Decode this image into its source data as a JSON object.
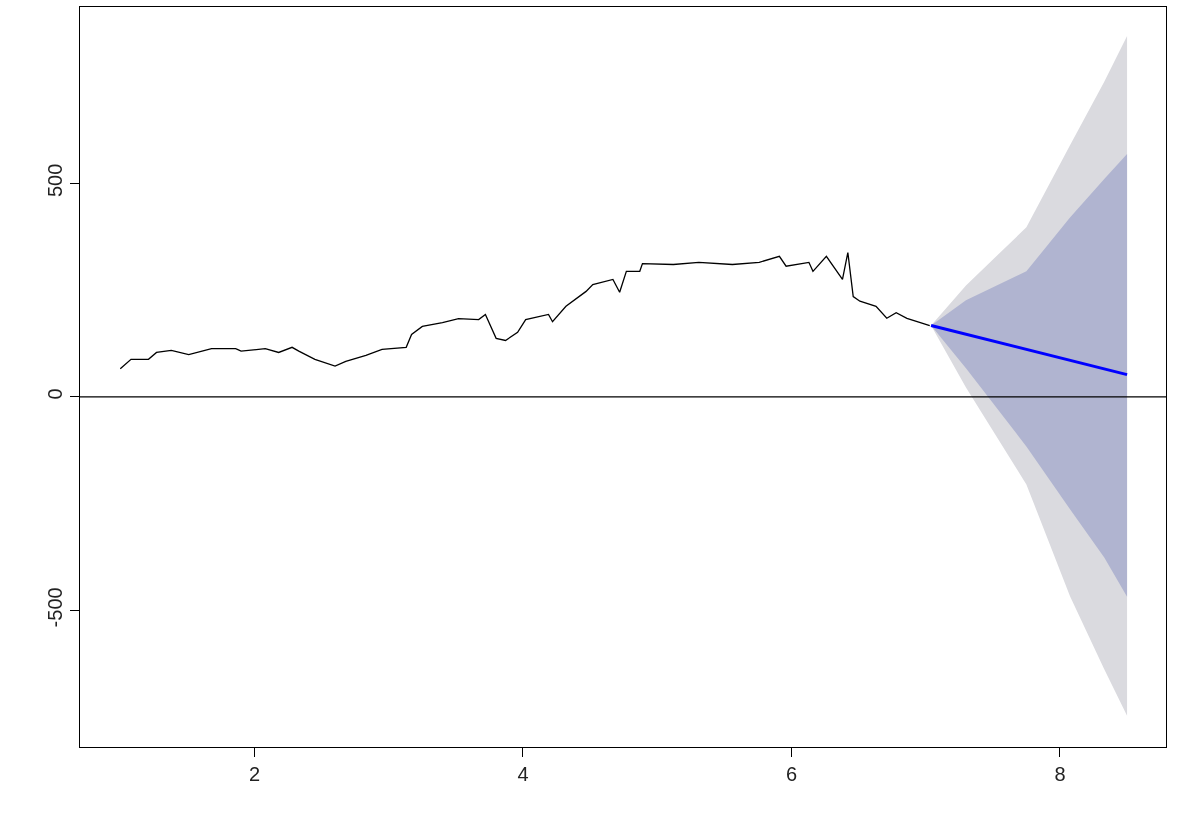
{
  "chart_data": {
    "type": "line",
    "xlim": [
      0.7,
      8.79
    ],
    "ylim": [
      -820,
      913
    ],
    "xticks": [
      2,
      4,
      6,
      8
    ],
    "yticks": [
      -500,
      0,
      500
    ],
    "ref_lines": [
      {
        "axis": "y",
        "value": 0,
        "color": "#000000"
      }
    ],
    "series": [
      {
        "color": "#dadadf",
        "x": [
          7.04,
          7.3,
          7.75,
          8.075,
          8.33,
          8.5
        ],
        "values": [
          null,
          null,
          null,
          null,
          null,
          null
        ],
        "lower": [
          167,
          22,
          -205,
          -467,
          -638,
          -747
        ],
        "upper": [
          167,
          261,
          397,
          589,
          738,
          845
        ]
      },
      {
        "color": "#b0b4d0",
        "x": [
          7.04,
          7.3,
          7.75,
          8.075,
          8.33,
          8.5
        ],
        "values": [
          null,
          null,
          null,
          null,
          null,
          null
        ],
        "lower": [
          167,
          67,
          -116,
          -263,
          -376,
          -468
        ],
        "upper": [
          167,
          226,
          294,
          420,
          510,
          569
        ]
      },
      {
        "color": "#000000",
        "x": [
          1.0,
          1.08,
          1.21,
          1.27,
          1.38,
          1.51,
          1.68,
          1.86,
          1.9,
          2.08,
          2.18,
          2.28,
          2.33,
          2.45,
          2.6,
          2.68,
          2.83,
          2.95,
          3.13,
          3.17,
          3.25,
          3.4,
          3.52,
          3.67,
          3.72,
          3.8,
          3.87,
          3.96,
          4.02,
          4.19,
          4.22,
          4.32,
          4.47,
          4.52,
          4.67,
          4.72,
          4.77,
          4.87,
          4.89,
          5.12,
          5.31,
          5.56,
          5.76,
          5.91,
          5.96,
          6.13,
          6.16,
          6.26,
          6.38,
          6.42,
          6.46,
          6.51,
          6.63,
          6.71,
          6.78,
          6.86,
          6.96,
          7.03
        ],
        "values": [
          66,
          88,
          88,
          104,
          109,
          99,
          113,
          113,
          107,
          113,
          104,
          116,
          107,
          88,
          72,
          83,
          97,
          111,
          116,
          146,
          165,
          174,
          183,
          181,
          193,
          137,
          132,
          151,
          181,
          193,
          176,
          212,
          247,
          263,
          275,
          245,
          294,
          294,
          312,
          310,
          315,
          310,
          315,
          329,
          306,
          315,
          294,
          329,
          275,
          338,
          235,
          224,
          212,
          184,
          197,
          184,
          174,
          167
        ]
      },
      {
        "color": "#0000ff",
        "x": [
          7.04,
          8.5
        ],
        "values": [
          167,
          52
        ]
      }
    ]
  }
}
